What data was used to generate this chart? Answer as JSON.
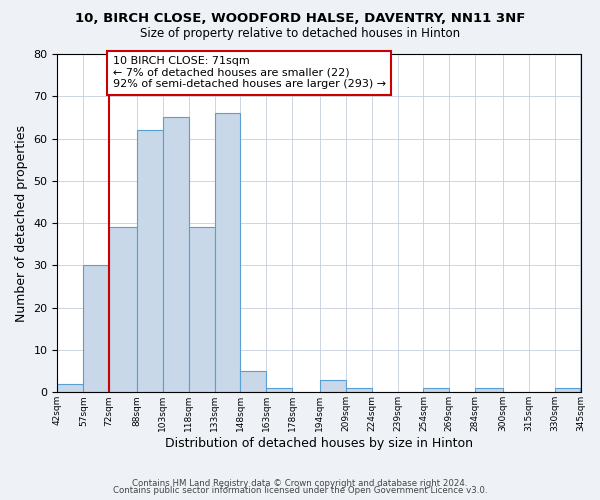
{
  "title1": "10, BIRCH CLOSE, WOODFORD HALSE, DAVENTRY, NN11 3NF",
  "title2": "Size of property relative to detached houses in Hinton",
  "xlabel": "Distribution of detached houses by size in Hinton",
  "ylabel": "Number of detached properties",
  "bins": [
    42,
    57,
    72,
    88,
    103,
    118,
    133,
    148,
    163,
    178,
    194,
    209,
    224,
    239,
    254,
    269,
    284,
    300,
    315,
    330,
    345
  ],
  "bin_labels": [
    "42sqm",
    "57sqm",
    "72sqm",
    "88sqm",
    "103sqm",
    "118sqm",
    "133sqm",
    "148sqm",
    "163sqm",
    "178sqm",
    "194sqm",
    "209sqm",
    "224sqm",
    "239sqm",
    "254sqm",
    "269sqm",
    "284sqm",
    "300sqm",
    "315sqm",
    "330sqm",
    "345sqm"
  ],
  "counts": [
    2,
    30,
    39,
    62,
    65,
    39,
    66,
    5,
    1,
    0,
    3,
    1,
    0,
    0,
    1,
    0,
    1,
    0,
    0,
    1
  ],
  "bar_color": "#c8d8e8",
  "bar_edge_color": "#5a9fd4",
  "vline_x": 72,
  "vline_color": "#cc0000",
  "annotation_line1": "10 BIRCH CLOSE: 71sqm",
  "annotation_line2": "← 7% of detached houses are smaller (22)",
  "annotation_line3": "92% of semi-detached houses are larger (293) →",
  "annotation_box_color": "#cc0000",
  "ylim": [
    0,
    80
  ],
  "yticks": [
    0,
    10,
    20,
    30,
    40,
    50,
    60,
    70,
    80
  ],
  "footer1": "Contains HM Land Registry data © Crown copyright and database right 2024.",
  "footer2": "Contains public sector information licensed under the Open Government Licence v3.0.",
  "background_color": "#eef2f7",
  "plot_background": "#ffffff",
  "grid_color": "#c5d0dc"
}
